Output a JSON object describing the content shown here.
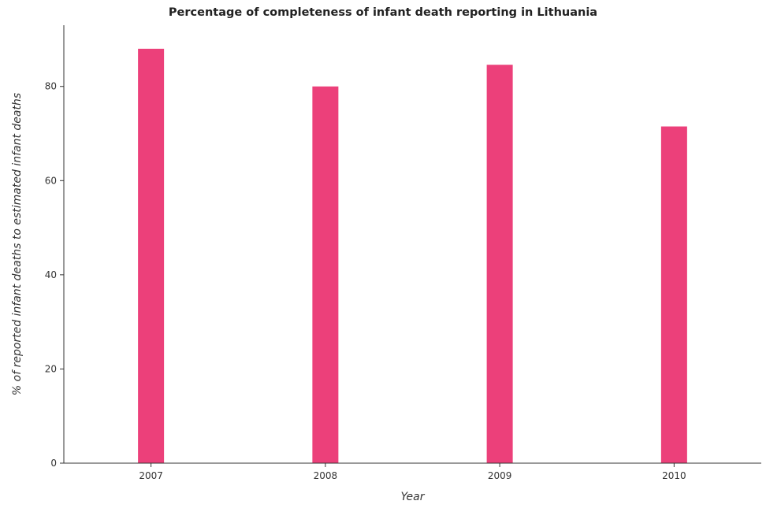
{
  "title": "Percentage of completeness of infant death reporting in Lithuania",
  "colors": {
    "bar": "#ec407a",
    "axis": "#333333"
  },
  "chart_data": {
    "type": "bar",
    "title": "Percentage of completeness of infant death reporting in Lithuania",
    "xlabel": "Year",
    "ylabel": "% of reported infant deaths to estimated infant deaths",
    "categories": [
      "2007",
      "2008",
      "2009",
      "2010"
    ],
    "values": [
      88.0,
      80.0,
      84.6,
      71.5
    ],
    "ylim": [
      0,
      93
    ],
    "yticks": [
      "0",
      "20",
      "40",
      "60",
      "80"
    ],
    "grid": false
  }
}
